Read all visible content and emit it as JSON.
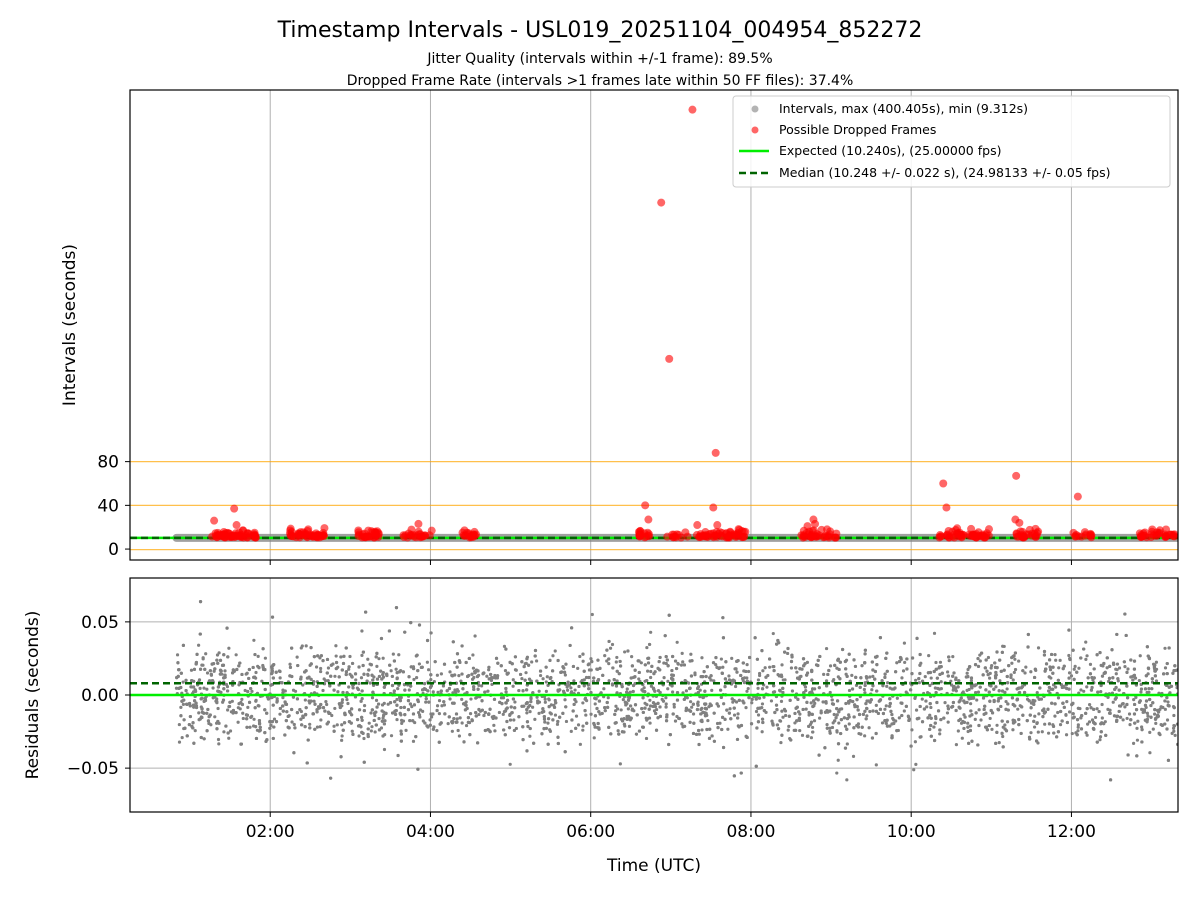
{
  "title": "Timestamp Intervals - USL019_20251104_004954_852272",
  "subtitle_lines": [
    "Jitter Quality (intervals within +/-1 frame): 89.5%",
    "Dropped Frame Rate (intervals >1 frames late within 50 FF files): 37.4%"
  ],
  "colors": {
    "intervals": "#808080",
    "dropped": "#ff0000",
    "expected": "#00ee00",
    "median": "#006400",
    "reference_lines": "#ffa500",
    "grid": "#b0b0b0"
  },
  "chart_data": [
    {
      "type": "scatter",
      "panel": "intervals",
      "ylabel": "Intervals (seconds)",
      "xlim": [
        0.25,
        13.33
      ],
      "ylim": [
        -10,
        420
      ],
      "y_ticks": [
        0,
        40,
        80
      ],
      "x_ticks": [
        2,
        4,
        6,
        8,
        10,
        12
      ],
      "grid": "x",
      "reference_lines_y": [
        -0.5,
        40,
        80
      ],
      "intervals_span": [
        0.83,
        13.33
      ],
      "expected_interval": 10.24,
      "median_interval": 10.248,
      "legend_position": "top-right",
      "legend": [
        {
          "label": "Intervals, max (400.405s), min (9.312s)",
          "marker": "dot",
          "color": "#808080"
        },
        {
          "label": "Possible Dropped Frames",
          "marker": "dot",
          "color": "#ff0000"
        },
        {
          "label": "Expected (10.240s), (25.00000 fps)",
          "marker": "line",
          "color": "#00ee00"
        },
        {
          "label": "Median (10.248 +/- 0.022 s), (24.98133 +/- 0.05 fps)",
          "marker": "dash",
          "color": "#006400"
        }
      ],
      "dropped_clusters": [
        {
          "x_start": 1.27,
          "x_end": 1.83,
          "count": 60
        },
        {
          "x_start": 2.22,
          "x_end": 2.68,
          "count": 48
        },
        {
          "x_start": 3.1,
          "x_end": 3.38,
          "count": 28
        },
        {
          "x_start": 3.62,
          "x_end": 4.02,
          "count": 24
        },
        {
          "x_start": 4.38,
          "x_end": 4.58,
          "count": 18
        },
        {
          "x_start": 6.6,
          "x_end": 6.75,
          "count": 18
        },
        {
          "x_start": 6.95,
          "x_end": 7.22,
          "count": 12
        },
        {
          "x_start": 7.32,
          "x_end": 7.95,
          "count": 55
        },
        {
          "x_start": 8.62,
          "x_end": 9.08,
          "count": 36
        },
        {
          "x_start": 10.35,
          "x_end": 10.98,
          "count": 55
        },
        {
          "x_start": 11.28,
          "x_end": 11.62,
          "count": 25
        },
        {
          "x_start": 12.02,
          "x_end": 12.25,
          "count": 14
        },
        {
          "x_start": 12.85,
          "x_end": 13.3,
          "count": 35
        }
      ],
      "dropped_outliers": [
        {
          "x": 1.3,
          "y": 26
        },
        {
          "x": 1.55,
          "y": 37
        },
        {
          "x": 1.58,
          "y": 22
        },
        {
          "x": 2.25,
          "y": 17
        },
        {
          "x": 3.1,
          "y": 17
        },
        {
          "x": 3.85,
          "y": 23
        },
        {
          "x": 4.4,
          "y": 15
        },
        {
          "x": 6.68,
          "y": 40
        },
        {
          "x": 6.72,
          "y": 27
        },
        {
          "x": 6.88,
          "y": 317
        },
        {
          "x": 6.98,
          "y": 174
        },
        {
          "x": 7.27,
          "y": 402
        },
        {
          "x": 7.33,
          "y": 22
        },
        {
          "x": 7.53,
          "y": 38
        },
        {
          "x": 7.56,
          "y": 88
        },
        {
          "x": 7.58,
          "y": 22
        },
        {
          "x": 8.78,
          "y": 27
        },
        {
          "x": 8.8,
          "y": 23
        },
        {
          "x": 8.95,
          "y": 18
        },
        {
          "x": 10.4,
          "y": 60
        },
        {
          "x": 10.44,
          "y": 38
        },
        {
          "x": 11.31,
          "y": 67
        },
        {
          "x": 11.3,
          "y": 27
        },
        {
          "x": 11.35,
          "y": 24
        },
        {
          "x": 12.08,
          "y": 48
        }
      ]
    },
    {
      "type": "scatter",
      "panel": "residuals",
      "xlabel": "Time (UTC)",
      "ylabel": "Residuals (seconds)",
      "xlim": [
        0.25,
        13.33
      ],
      "ylim": [
        -0.08,
        0.08
      ],
      "y_ticks": [
        0.05,
        0.0,
        -0.05
      ],
      "x_ticks": [
        2,
        4,
        6,
        8,
        10,
        12
      ],
      "grid": "both",
      "expected_residual": 0.0,
      "median_residual": 0.008,
      "x_range": [
        0.83,
        13.33
      ],
      "point_count": 4300,
      "residual_levels": [
        -0.02,
        -0.01,
        0.0,
        0.01,
        0.02
      ]
    }
  ],
  "tick_labels": {
    "x": [
      "02:00",
      "04:00",
      "06:00",
      "08:00",
      "10:00",
      "12:00"
    ],
    "y_top": [
      "0",
      "40",
      "80"
    ],
    "y_bottom": [
      "0.05",
      "0.00",
      "−0.05"
    ]
  }
}
